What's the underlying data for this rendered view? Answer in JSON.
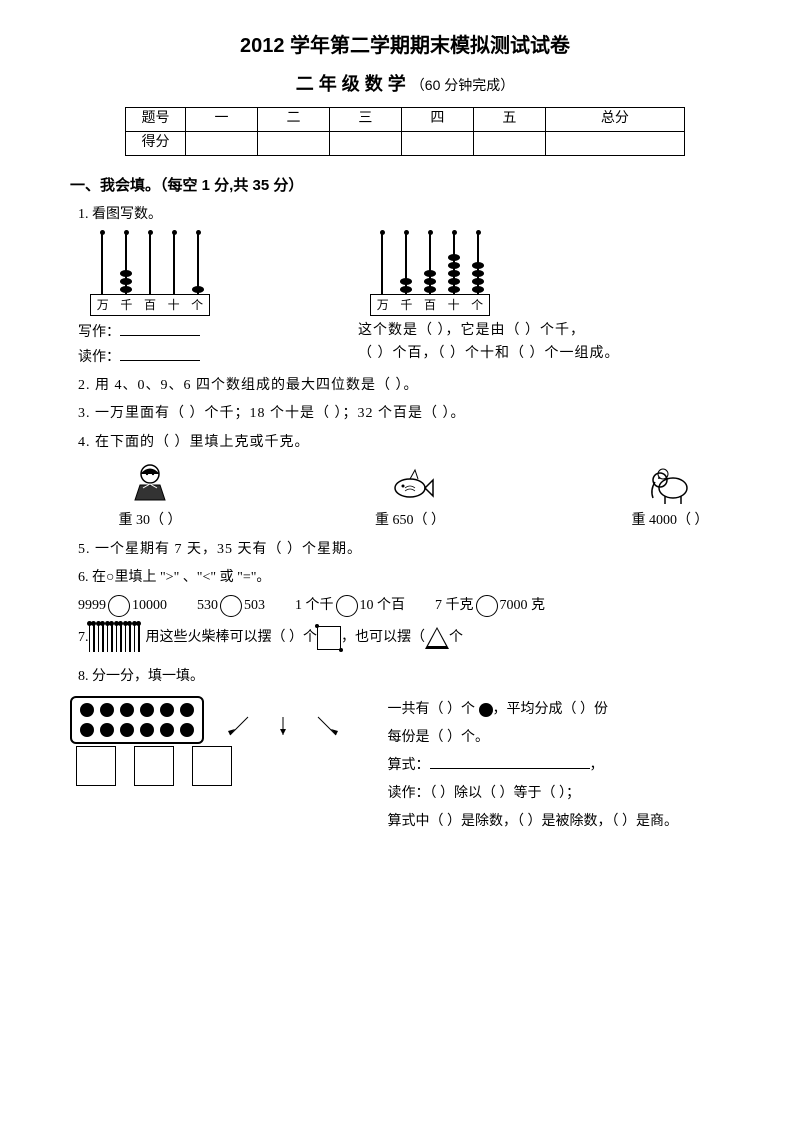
{
  "header": {
    "title1": "2012 学年第二学期期末模拟测试试卷",
    "title2_main": "二 年 级 数 学",
    "title2_sub": "（60 分钟完成）"
  },
  "score_table": {
    "cols": [
      "题号",
      "一",
      "二",
      "三",
      "四",
      "五",
      "总分"
    ],
    "row_label": "得分"
  },
  "section1": {
    "heading": "一、我会填。（每空 1 分,共 35 分）",
    "q1": {
      "label": "1. 看图写数。",
      "abacus1": {
        "places": [
          "万",
          "千",
          "百",
          "十",
          "个"
        ],
        "beads": [
          0,
          3,
          0,
          0,
          1
        ]
      },
      "abacus2": {
        "places": [
          "万",
          "千",
          "百",
          "十",
          "个"
        ],
        "beads": [
          0,
          2,
          3,
          5,
          4
        ]
      },
      "write": "写作：",
      "read": "读作：",
      "right1": "这个数是（        ），它是由（     ）个千，",
      "right2": "（     ）个百，（     ）个十和（     ）个一组成。"
    },
    "q2": "2. 用 4、0、9、6 四个数组成的最大四位数是（        ）。",
    "q3": "3. 一万里面有（     ）个千；18 个十是（        ）；32 个百是（        ）。",
    "q4": {
      "label": "4. 在下面的（     ）里填上克或千克。",
      "items": [
        {
          "caption": "重 30（      ）"
        },
        {
          "caption": "重 650（     ）"
        },
        {
          "caption": "重 4000（     ）"
        }
      ]
    },
    "q5": "5. 一个星期有 7 天，35 天有（     ）个星期。",
    "q6": {
      "label": "6. 在○里填上 \">\" 、\"<\" 或 \"=\"。",
      "items": [
        "9999",
        "10000",
        "530",
        "503",
        "1 个千",
        "10 个百",
        "7 千克",
        "7000 克"
      ]
    },
    "q7": {
      "prefix": "7.",
      "match_count": 12,
      "text1": "用这些火柴棒可以摆（       ）个",
      "text2": "，也可以摆（     ",
      "text3": "个"
    },
    "q8": {
      "label": "8. 分一分，填一填。",
      "dots_cols": 6,
      "dots_rows": 2,
      "line1_a": "一共有（       ）个 ",
      "line1_b": "，平均分成（      ）份",
      "line2": "每份是（      ）个。",
      "line3_a": "算式：",
      "line3_b": "，",
      "line4": "读作：（       ）除以（      ）等于（       ）；",
      "line5": " 算式中（     ）是除数，（     ）是被除数，（     ）是商。"
    }
  },
  "colors": {
    "text": "#000000",
    "bg": "#ffffff"
  }
}
